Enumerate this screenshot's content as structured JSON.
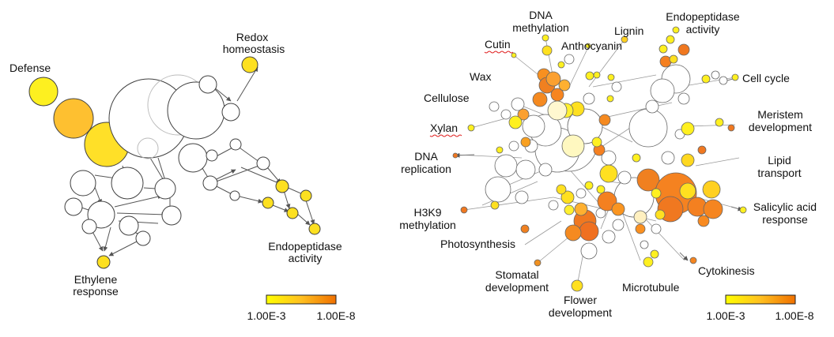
{
  "left_network": {
    "labels": {
      "defense": "Defense",
      "redox": [
        "Redox",
        "homeostasis"
      ],
      "endopeptidase": [
        "Endopeptidase",
        "activity"
      ],
      "ethylene": [
        "Ethylene",
        "response"
      ]
    },
    "legend": {
      "low": "1.00E-3",
      "high": "1.00E-8"
    }
  },
  "right_network": {
    "labels": {
      "dna_methylation": [
        "DNA",
        "methylation"
      ],
      "cutin": "Cutin",
      "lignin": "Lignin",
      "anthocyanin": "Anthocyanin",
      "endopeptidase": [
        "Endopeptidase",
        "activity"
      ],
      "wax": "Wax",
      "cell_cycle": "Cell cycle",
      "cellulose": "Cellulose",
      "meristem": [
        "Meristem",
        "development"
      ],
      "xylan": "Xylan",
      "dna_replication": [
        "DNA",
        "replication"
      ],
      "lipid": [
        "Lipid",
        "transport"
      ],
      "h3k9": [
        "H3K9",
        "methylation"
      ],
      "salicylic": [
        "Salicylic acid",
        "response"
      ],
      "photosynthesis": "Photosynthesis",
      "cytokinesis": "Cytokinesis",
      "stomatal": [
        "Stomatal",
        "development"
      ],
      "microtubule": "Microtubule",
      "flower": [
        "Flower",
        "development"
      ]
    },
    "legend": {
      "low": "1.00E-3",
      "high": "1.00E-8"
    }
  },
  "colors": {
    "low": "#ffff00",
    "high": "#f07800",
    "node_white": "#ffffff",
    "node_stroke": "#404040"
  }
}
